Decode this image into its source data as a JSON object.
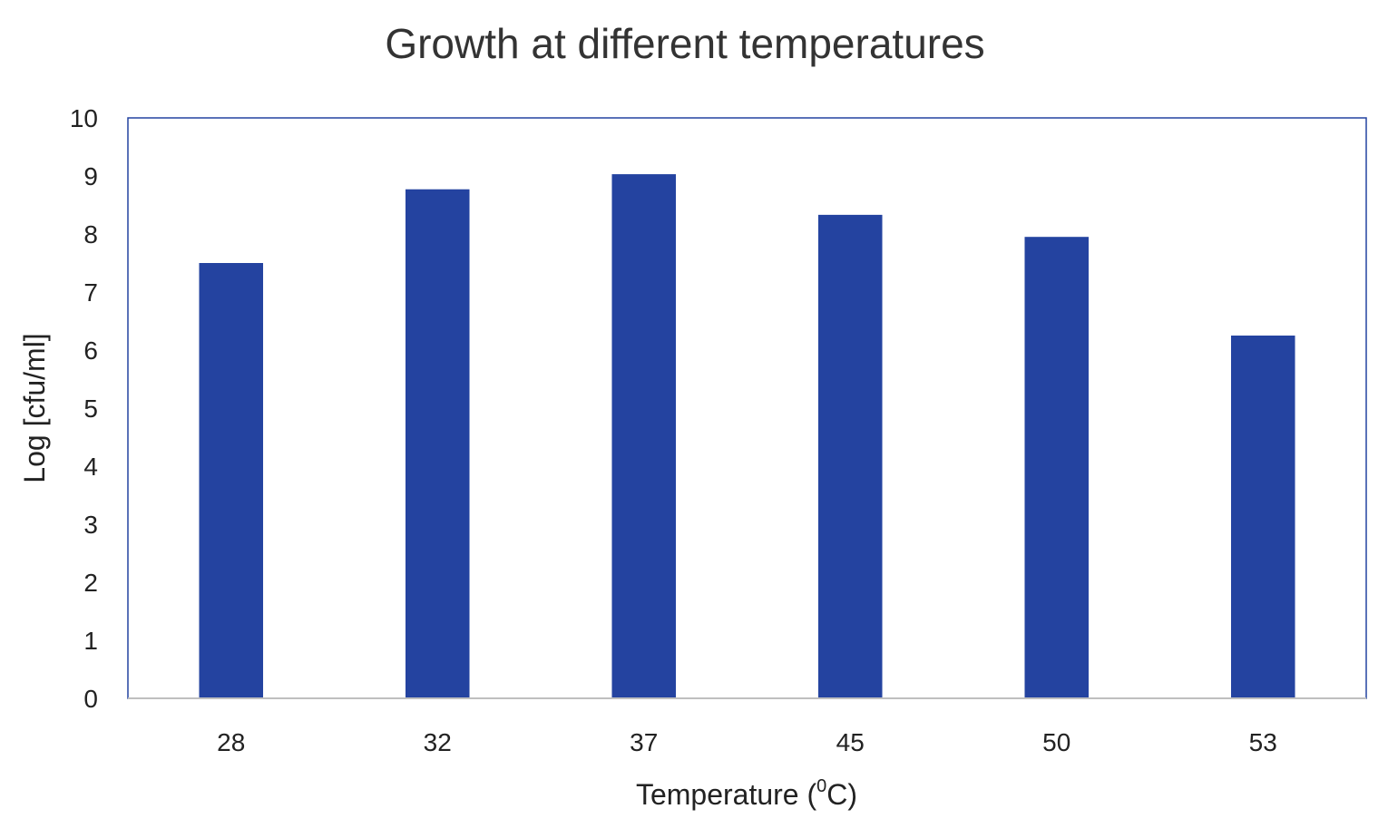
{
  "chart_data": {
    "type": "bar",
    "title": "Growth at different temperatures",
    "xlabel_prefix": "Temperature (",
    "xlabel_sup": "0",
    "xlabel_suffix": "C)",
    "ylabel": "Log [cfu/ml]",
    "categories": [
      "28",
      "32",
      "37",
      "45",
      "50",
      "53"
    ],
    "values": [
      7.5,
      8.77,
      9.03,
      8.33,
      7.95,
      6.25
    ],
    "ylim": [
      0,
      10
    ],
    "yticks": [
      0,
      1,
      2,
      3,
      4,
      5,
      6,
      7,
      8,
      9,
      10
    ],
    "grid": false,
    "legend": "none",
    "colors": {
      "bar": "#2443A0",
      "frame": "#2443A0",
      "baseline": "#BFBFBF"
    }
  }
}
